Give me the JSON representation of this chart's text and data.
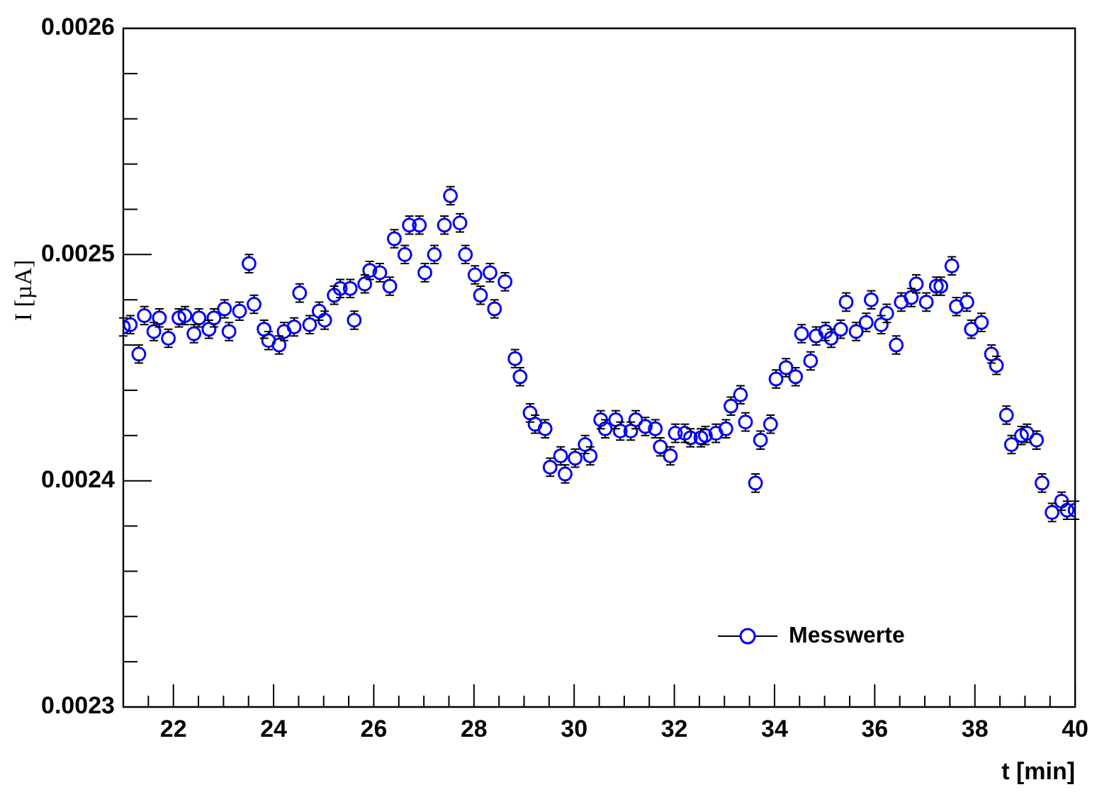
{
  "chart_data": {
    "type": "scatter",
    "xlabel": "t [min]",
    "ylabel": "I [µA]",
    "legend": "bottom right",
    "marker": "circle",
    "xlim": [
      21,
      40
    ],
    "xticks": [
      {
        "value": 21.5,
        "label": null
      },
      22,
      {
        "value": 22.5,
        "label": null
      },
      {
        "value": 23,
        "label": null
      },
      {
        "value": 23.5,
        "label": null
      },
      24,
      {
        "value": 24.5,
        "label": null
      },
      {
        "value": 25,
        "label": null
      },
      {
        "value": 25.5,
        "label": null
      },
      26,
      {
        "value": 26.5,
        "label": null
      },
      {
        "value": 27,
        "label": null
      },
      {
        "value": 27.5,
        "label": null
      },
      28,
      {
        "value": 28.5,
        "label": null
      },
      {
        "value": 29,
        "label": null
      },
      {
        "value": 29.5,
        "label": null
      },
      30,
      {
        "value": 30.5,
        "label": null
      },
      {
        "value": 31,
        "label": null
      },
      {
        "value": 31.5,
        "label": null
      },
      32,
      {
        "value": 32.5,
        "label": null
      },
      {
        "value": 33,
        "label": null
      },
      {
        "value": 33.5,
        "label": null
      },
      34,
      {
        "value": 34.5,
        "label": null
      },
      {
        "value": 35,
        "label": null
      },
      {
        "value": 35.5,
        "label": null
      },
      36,
      {
        "value": 36.5,
        "label": null
      },
      {
        "value": 37,
        "label": null
      },
      {
        "value": 37.5,
        "label": null
      },
      38,
      {
        "value": 38.5,
        "label": null
      },
      {
        "value": 39,
        "label": null
      },
      {
        "value": 39.5,
        "label": null
      },
      40
    ],
    "ylim": [
      0.0023,
      0.0026
    ],
    "yticks": [
      0.0023,
      {
        "value": 0.00232,
        "label": null
      },
      {
        "value": 0.00234,
        "label": null
      },
      {
        "value": 0.00236,
        "label": null
      },
      {
        "value": 0.00238,
        "label": null
      },
      0.0024,
      {
        "value": 0.00242,
        "label": null
      },
      {
        "value": 0.00244,
        "label": null
      },
      {
        "value": 0.00246,
        "label": null
      },
      {
        "value": 0.00248,
        "label": null
      },
      0.0025,
      {
        "value": 0.00252,
        "label": null
      },
      {
        "value": 0.00254,
        "label": null
      },
      {
        "value": 0.00256,
        "label": null
      },
      {
        "value": 0.00258,
        "label": null
      },
      0.0026
    ],
    "x": [
      21.0,
      21.14,
      21.31,
      21.42,
      21.61,
      21.72,
      21.9,
      22.11,
      22.23,
      22.41,
      22.51,
      22.71,
      22.81,
      23.02,
      23.11,
      23.32,
      23.51,
      23.61,
      23.81,
      23.9,
      24.11,
      24.21,
      24.41,
      24.52,
      24.72,
      24.91,
      25.02,
      25.21,
      25.33,
      25.53,
      25.61,
      25.82,
      25.92,
      26.12,
      26.32,
      26.41,
      26.62,
      26.71,
      26.91,
      27.02,
      27.21,
      27.41,
      27.53,
      27.72,
      27.83,
      28.02,
      28.13,
      28.32,
      28.41,
      28.62,
      28.82,
      28.92,
      29.12,
      29.22,
      29.42,
      29.52,
      29.73,
      29.82,
      30.02,
      30.22,
      30.32,
      30.53,
      30.62,
      30.83,
      30.92,
      31.13,
      31.23,
      31.42,
      31.62,
      31.72,
      31.92,
      32.02,
      32.21,
      32.32,
      32.53,
      32.62,
      32.83,
      33.03,
      33.13,
      33.32,
      33.42,
      33.62,
      33.72,
      33.92,
      34.03,
      34.23,
      34.42,
      34.54,
      34.72,
      34.83,
      35.02,
      35.13,
      35.32,
      35.43,
      35.63,
      35.83,
      35.93,
      36.13,
      36.24,
      36.43,
      36.53,
      36.73,
      36.83,
      37.03,
      37.23,
      37.32,
      37.54,
      37.63,
      37.84,
      37.93,
      38.13,
      38.33,
      38.43,
      38.63,
      38.73,
      38.93,
      39.04,
      39.23,
      39.34,
      39.54,
      39.73,
      39.84,
      40.0
    ],
    "series": [
      {
        "name": "Messwerte",
        "color": "#0000ff",
        "values": [
          0.002468,
          0.002469,
          0.002456,
          0.002473,
          0.002466,
          0.002472,
          0.002463,
          0.002472,
          0.002473,
          0.002465,
          0.002472,
          0.002467,
          0.002472,
          0.002476,
          0.002466,
          0.002475,
          0.002496,
          0.002478,
          0.002467,
          0.002462,
          0.00246,
          0.002466,
          0.002468,
          0.002483,
          0.002469,
          0.002475,
          0.002471,
          0.002482,
          0.002485,
          0.002485,
          0.002471,
          0.002487,
          0.002493,
          0.002492,
          0.002486,
          0.002507,
          0.0025,
          0.002513,
          0.002513,
          0.002492,
          0.0025,
          0.002513,
          0.002526,
          0.002514,
          0.0025,
          0.002491,
          0.002482,
          0.002492,
          0.002476,
          0.002488,
          0.002454,
          0.002446,
          0.00243,
          0.002425,
          0.002423,
          0.002406,
          0.002411,
          0.002403,
          0.00241,
          0.002416,
          0.002411,
          0.002427,
          0.002423,
          0.002427,
          0.002422,
          0.002422,
          0.002427,
          0.002424,
          0.002423,
          0.002415,
          0.002411,
          0.002421,
          0.002421,
          0.002419,
          0.002419,
          0.00242,
          0.002421,
          0.002423,
          0.002433,
          0.002438,
          0.002426,
          0.002399,
          0.002418,
          0.002425,
          0.002445,
          0.00245,
          0.002446,
          0.002465,
          0.002453,
          0.002464,
          0.002466,
          0.002463,
          0.002467,
          0.002479,
          0.002466,
          0.00247,
          0.00248,
          0.002469,
          0.002474,
          0.00246,
          0.002479,
          0.002481,
          0.002487,
          0.002479,
          0.002486,
          0.002486,
          0.002495,
          0.002477,
          0.002479,
          0.002467,
          0.00247,
          0.002456,
          0.002451,
          0.002429,
          0.002416,
          0.00242,
          0.002421,
          0.002418,
          0.002399,
          0.002386,
          0.002391,
          0.002387,
          0.002387
        ],
        "errors": [
          4e-06,
          4e-06,
          4e-06,
          4e-06,
          4e-06,
          4e-06,
          4e-06,
          4e-06,
          4e-06,
          4e-06,
          4e-06,
          4e-06,
          4e-06,
          4e-06,
          4e-06,
          4e-06,
          4e-06,
          4e-06,
          4e-06,
          4e-06,
          4e-06,
          4e-06,
          4e-06,
          4e-06,
          4e-06,
          4e-06,
          4e-06,
          4e-06,
          4e-06,
          4e-06,
          4e-06,
          4e-06,
          4e-06,
          4e-06,
          4e-06,
          4e-06,
          4e-06,
          4e-06,
          4e-06,
          4e-06,
          4e-06,
          4e-06,
          4e-06,
          4e-06,
          4e-06,
          4e-06,
          4e-06,
          4e-06,
          4e-06,
          4e-06,
          4e-06,
          4e-06,
          4e-06,
          4e-06,
          4e-06,
          4e-06,
          4e-06,
          4e-06,
          4e-06,
          4e-06,
          4e-06,
          4e-06,
          4e-06,
          4e-06,
          4e-06,
          4e-06,
          4e-06,
          4e-06,
          4e-06,
          4e-06,
          4e-06,
          4e-06,
          4e-06,
          4e-06,
          4e-06,
          4e-06,
          4e-06,
          4e-06,
          4e-06,
          4e-06,
          4e-06,
          4e-06,
          4e-06,
          4e-06,
          4e-06,
          4e-06,
          4e-06,
          4e-06,
          4e-06,
          4e-06,
          4e-06,
          4e-06,
          4e-06,
          4e-06,
          4e-06,
          4e-06,
          4e-06,
          4e-06,
          4e-06,
          4e-06,
          4e-06,
          4e-06,
          4e-06,
          4e-06,
          4e-06,
          4e-06,
          4e-06,
          4e-06,
          4e-06,
          4e-06,
          4e-06,
          4e-06,
          4e-06,
          4e-06,
          4e-06,
          4e-06,
          4e-06,
          4e-06,
          4e-06,
          4e-06,
          4e-06,
          4e-06,
          4e-06
        ]
      }
    ]
  }
}
